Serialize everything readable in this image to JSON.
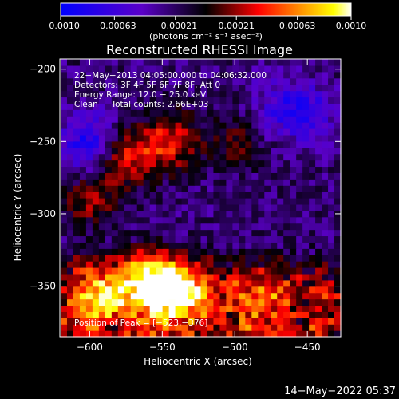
{
  "chart_data": {
    "type": "heatmap",
    "title": "Reconstructed RHESSI Image",
    "xlabel": "Heliocentric X (arcsec)",
    "ylabel": "Heliocentric Y (arcsec)",
    "xlim": [
      -620,
      -427
    ],
    "ylim": [
      -385,
      -193
    ],
    "x_ticks": [
      -600,
      -550,
      -500,
      -450
    ],
    "y_ticks": [
      -200,
      -250,
      -300,
      -350
    ],
    "x_tick_labels": [
      "−600",
      "−550",
      "−500",
      "−450"
    ],
    "y_tick_labels": [
      "−200",
      "−250",
      "−300",
      "−350"
    ],
    "colorbar": {
      "range": [
        -0.001,
        0.001
      ],
      "tick_values": [
        -0.001,
        -0.00063,
        -0.00021,
        0.00021,
        0.00063,
        0.001
      ],
      "tick_labels": [
        "−0.0010",
        "−0.00063",
        "−0.00021",
        "0.00021",
        "0.00063",
        "0.0010"
      ],
      "units": "(photons cm⁻² s⁻¹ asec⁻²)",
      "colormap": [
        "#0000ff",
        "#5a00c8",
        "#000000",
        "#ff0000",
        "#ff8c00",
        "#ffff00",
        "#ffffff"
      ]
    },
    "annotations": [
      "22−May−2013 04:05:00.000 to 04:06:32.000",
      "Detectors: 3F 4F 5F 6F 7F 8F, Att 0",
      "Energy Range: 12.0 − 25.0 keV",
      "Clean     Total counts: 2.66E+03"
    ],
    "peak_label": "Position of Peak = [−523,−376]",
    "peak_position": [
      -523,
      -376
    ],
    "features": [
      {
        "x": -540,
        "y": -355,
        "value": 0.001
      },
      {
        "x": -560,
        "y": -345,
        "value": 0.0009
      },
      {
        "x": -595,
        "y": -355,
        "value": 0.0006
      },
      {
        "x": -545,
        "y": -250,
        "value": 0.0006
      },
      {
        "x": -575,
        "y": -260,
        "value": 0.0006
      },
      {
        "x": -480,
        "y": -360,
        "value": 0.0004
      },
      {
        "x": -600,
        "y": -290,
        "value": 0.0004
      },
      {
        "x": -500,
        "y": -250,
        "value": 0.0003
      },
      {
        "x": -470,
        "y": -225,
        "value": -0.0003
      },
      {
        "x": -600,
        "y": -250,
        "value": -0.0006
      },
      {
        "x": -450,
        "y": -230,
        "value": -0.0004
      }
    ]
  },
  "timestamp": "14−May−2022 05:37"
}
